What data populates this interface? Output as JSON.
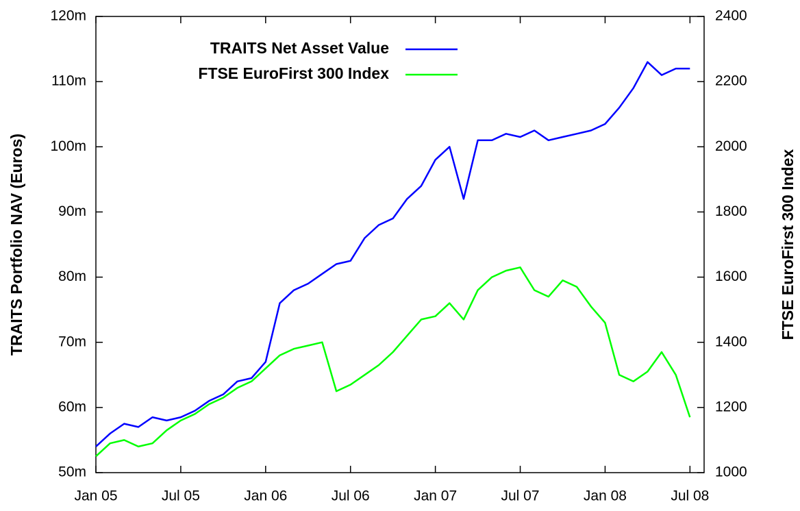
{
  "chart_data": {
    "type": "line",
    "ylabel": "TRAITS Portfolio NAV (Euros)",
    "y2label": "FTSE EuroFirst 300 Index",
    "x": [
      "2005-01",
      "2005-02",
      "2005-03",
      "2005-04",
      "2005-05",
      "2005-06",
      "2005-07",
      "2005-08",
      "2005-09",
      "2005-10",
      "2005-11",
      "2005-12",
      "2006-01",
      "2006-02",
      "2006-03",
      "2006-04",
      "2006-05",
      "2006-06",
      "2006-07",
      "2006-08",
      "2006-09",
      "2006-10",
      "2006-11",
      "2006-12",
      "2007-01",
      "2007-02",
      "2007-03",
      "2007-04",
      "2007-05",
      "2007-06",
      "2007-07",
      "2007-08",
      "2007-09",
      "2007-10",
      "2007-11",
      "2007-12",
      "2008-01",
      "2008-02",
      "2008-03",
      "2008-04",
      "2008-05",
      "2008-06",
      "2008-07"
    ],
    "xlim": [
      "2005-01",
      "2008-08"
    ],
    "xticks": [
      {
        "value": "2005-01",
        "label": "Jan 05"
      },
      {
        "value": "2005-07",
        "label": "Jul 05"
      },
      {
        "value": "2006-01",
        "label": "Jan 06"
      },
      {
        "value": "2006-07",
        "label": "Jul 06"
      },
      {
        "value": "2007-01",
        "label": "Jan 07"
      },
      {
        "value": "2007-07",
        "label": "Jul 07"
      },
      {
        "value": "2008-01",
        "label": "Jan 08"
      },
      {
        "value": "2008-07",
        "label": "Jul 08"
      }
    ],
    "ylim": [
      50000000,
      120000000
    ],
    "yticks": [
      {
        "value": 50000000,
        "label": "50m"
      },
      {
        "value": 60000000,
        "label": "60m"
      },
      {
        "value": 70000000,
        "label": "70m"
      },
      {
        "value": 80000000,
        "label": "80m"
      },
      {
        "value": 90000000,
        "label": "90m"
      },
      {
        "value": 100000000,
        "label": "100m"
      },
      {
        "value": 110000000,
        "label": "110m"
      },
      {
        "value": 120000000,
        "label": "120m"
      }
    ],
    "y2lim": [
      1000,
      2400
    ],
    "y2ticks": [
      1000,
      1200,
      1400,
      1600,
      1800,
      2000,
      2200,
      2400
    ],
    "legend": "top-left",
    "series": [
      {
        "name": "TRAITS Net Asset Value",
        "color": "#0000ff",
        "axis": "y",
        "values": [
          54000000,
          56000000,
          57500000,
          57000000,
          58500000,
          58000000,
          58500000,
          59500000,
          61000000,
          62000000,
          64000000,
          64500000,
          67000000,
          76000000,
          78000000,
          79000000,
          80500000,
          82000000,
          82500000,
          86000000,
          88000000,
          89000000,
          92000000,
          94000000,
          98000000,
          100000000,
          92000000,
          101000000,
          101000000,
          102000000,
          101500000,
          102500000,
          101000000,
          101500000,
          102000000,
          102500000,
          103500000,
          106000000,
          109000000,
          113000000,
          111000000,
          112000000,
          112000000
        ]
      },
      {
        "name": "FTSE EuroFirst 300 Index",
        "color": "#00ff00",
        "axis": "y2",
        "values": [
          1050,
          1090,
          1100,
          1080,
          1090,
          1130,
          1160,
          1180,
          1210,
          1230,
          1260,
          1280,
          1320,
          1360,
          1380,
          1390,
          1400,
          1250,
          1270,
          1300,
          1330,
          1370,
          1420,
          1470,
          1480,
          1520,
          1470,
          1560,
          1600,
          1620,
          1630,
          1560,
          1540,
          1590,
          1570,
          1510,
          1460,
          1300,
          1280,
          1310,
          1370,
          1300,
          1170
        ]
      }
    ]
  }
}
